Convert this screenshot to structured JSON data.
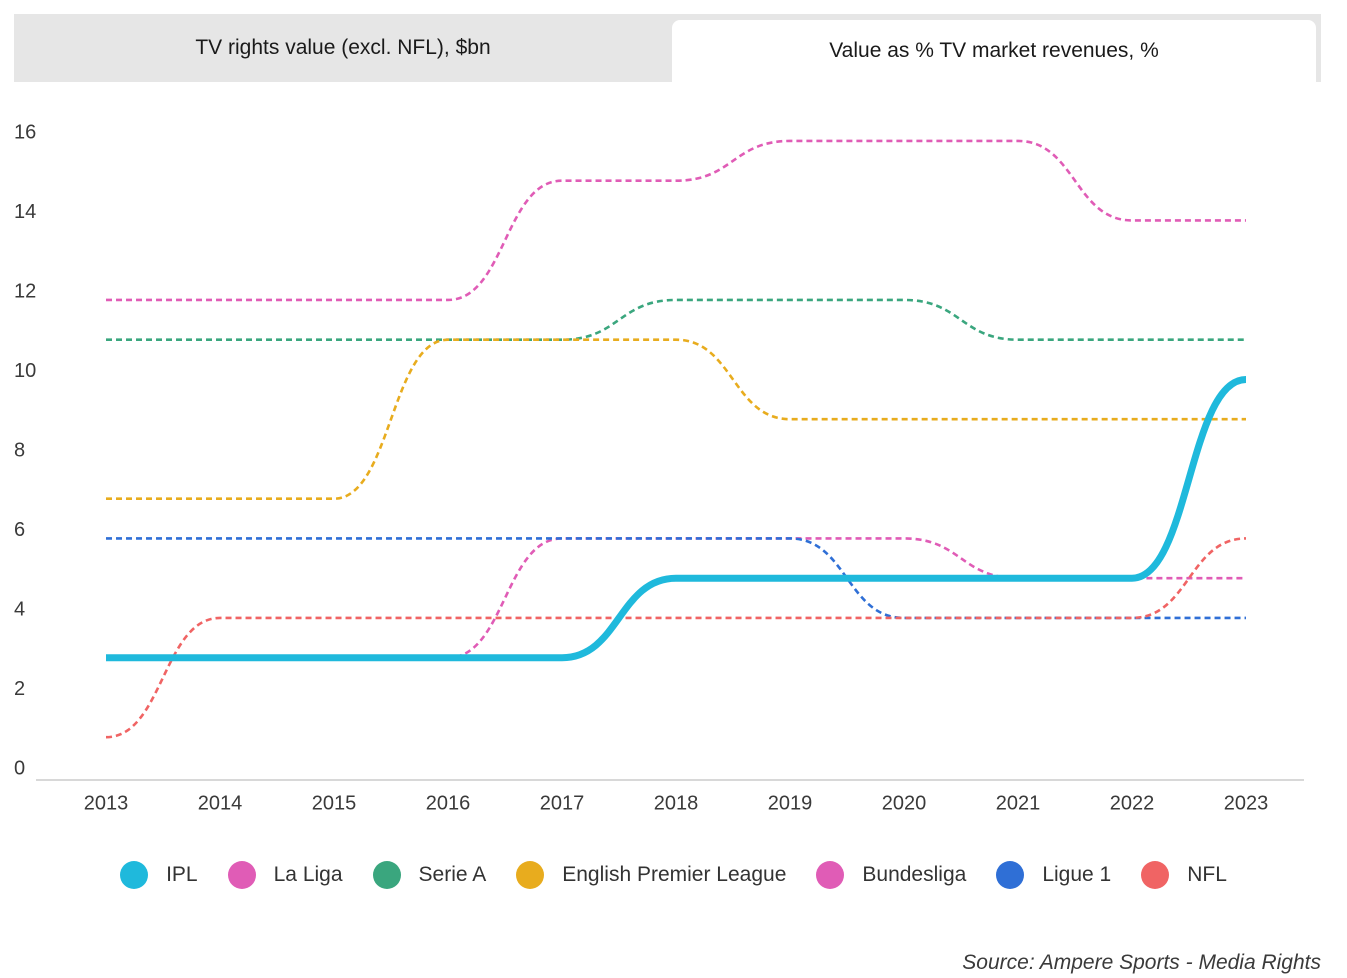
{
  "tabs": [
    {
      "label": "TV rights value (excl. NFL), $bn",
      "active": false
    },
    {
      "label": "Value as % TV market revenues, %",
      "active": true
    }
  ],
  "chart_data": {
    "type": "line",
    "title": "Value as % TV market revenues, %",
    "xlabel": "",
    "ylabel": "",
    "x": [
      "2013",
      "2014",
      "2015",
      "2016",
      "2017",
      "2018",
      "2019",
      "2020",
      "2021",
      "2022",
      "2023"
    ],
    "ylim": [
      0,
      16
    ],
    "yticks": [
      0,
      2,
      4,
      6,
      8,
      10,
      12,
      14,
      16
    ],
    "grid": false,
    "legend_position": "bottom",
    "series": [
      {
        "name": "IPL",
        "color": "#1fb9dc",
        "style": "solid",
        "values": [
          2.8,
          2.8,
          2.8,
          2.8,
          2.8,
          4.8,
          4.8,
          4.8,
          4.8,
          4.8,
          9.8
        ]
      },
      {
        "name": "La Liga",
        "color": "#e05cb6",
        "style": "dashed",
        "values": [
          11.8,
          11.8,
          11.8,
          11.8,
          14.8,
          14.8,
          15.8,
          15.8,
          15.8,
          13.8,
          13.8
        ]
      },
      {
        "name": "Serie A",
        "color": "#3aa67e",
        "style": "dashed",
        "values": [
          10.8,
          10.8,
          10.8,
          10.8,
          10.8,
          11.8,
          11.8,
          11.8,
          10.8,
          10.8,
          10.8
        ]
      },
      {
        "name": "English Premier League",
        "color": "#e8ac1e",
        "style": "dashed",
        "values": [
          6.8,
          6.8,
          6.8,
          10.8,
          10.8,
          10.8,
          8.8,
          8.8,
          8.8,
          8.8,
          8.8
        ]
      },
      {
        "name": "Bundesliga",
        "color": "#e05cb6",
        "style": "dashed",
        "values": [
          2.8,
          2.8,
          2.8,
          2.8,
          5.8,
          5.8,
          5.8,
          5.8,
          4.8,
          4.8,
          4.8
        ]
      },
      {
        "name": "Ligue 1",
        "color": "#2f6fd6",
        "style": "dashed",
        "values": [
          5.8,
          5.8,
          5.8,
          5.8,
          5.8,
          5.8,
          5.8,
          3.8,
          3.8,
          3.8,
          3.8
        ]
      },
      {
        "name": "NFL",
        "color": "#f06464",
        "style": "dashed",
        "values": [
          0.8,
          3.8,
          3.8,
          3.8,
          3.8,
          3.8,
          3.8,
          3.8,
          3.8,
          3.8,
          5.8
        ]
      }
    ]
  },
  "source": "Source: Ampere Sports - Media Rights"
}
